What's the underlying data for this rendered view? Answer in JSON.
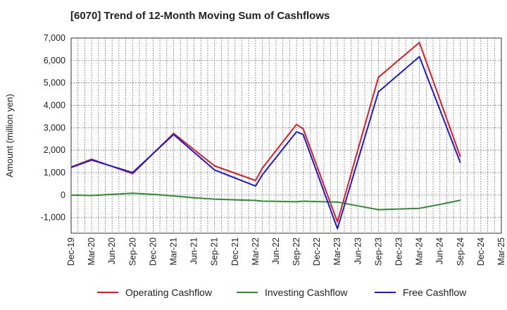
{
  "chart_data": {
    "type": "line",
    "title": "[6070]  Trend of 12-Month Moving Sum of Cashflows",
    "xlabel": "",
    "ylabel": "Amount (million yen)",
    "ylim": [
      -1700,
      7000
    ],
    "y_ticks": [
      -1000,
      0,
      1000,
      2000,
      3000,
      4000,
      5000,
      6000,
      7000
    ],
    "y_tick_labels": [
      "-1,000",
      "0",
      "1,000",
      "2,000",
      "3,000",
      "4,000",
      "5,000",
      "6,000",
      "7,000"
    ],
    "x_ticks": [
      "Dec-19",
      "Mar-20",
      "Jun-20",
      "Sep-20",
      "Dec-20",
      "Mar-21",
      "Jun-21",
      "Sep-21",
      "Dec-21",
      "Mar-22",
      "Jun-22",
      "Sep-22",
      "Dec-22",
      "Mar-23",
      "Jun-23",
      "Sep-23",
      "Dec-23",
      "Mar-24",
      "Jun-24",
      "Sep-24",
      "Dec-24",
      "Mar-25"
    ],
    "grid": true,
    "legend_position": "bottom",
    "series": [
      {
        "name": "Operating Cashflow",
        "color": "#e41a1c",
        "points": [
          [
            0,
            1250
          ],
          [
            1,
            1600
          ],
          [
            3,
            950
          ],
          [
            5,
            2750
          ],
          [
            7,
            1300
          ],
          [
            9,
            650
          ],
          [
            9.33,
            1200
          ],
          [
            11,
            3150
          ],
          [
            11.33,
            2950
          ],
          [
            13,
            -1200
          ],
          [
            15,
            5250
          ],
          [
            17,
            6800
          ],
          [
            19,
            1700
          ]
        ]
      },
      {
        "name": "Investing Cashflow",
        "color": "#2e8b2e",
        "points": [
          [
            0,
            0
          ],
          [
            1,
            -20
          ],
          [
            2,
            30
          ],
          [
            3,
            80
          ],
          [
            4,
            30
          ],
          [
            5,
            -40
          ],
          [
            6,
            -120
          ],
          [
            7,
            -180
          ],
          [
            8,
            -210
          ],
          [
            9,
            -240
          ],
          [
            9.33,
            -270
          ],
          [
            10,
            -280
          ],
          [
            11,
            -300
          ],
          [
            11.33,
            -270
          ],
          [
            12,
            -290
          ],
          [
            13,
            -310
          ],
          [
            14,
            -480
          ],
          [
            15,
            -650
          ],
          [
            16,
            -620
          ],
          [
            17,
            -590
          ],
          [
            18,
            -420
          ],
          [
            19,
            -230
          ]
        ]
      },
      {
        "name": "Free Cashflow",
        "color": "#1a1adb",
        "points": [
          [
            0,
            1230
          ],
          [
            1,
            1560
          ],
          [
            3,
            1000
          ],
          [
            5,
            2700
          ],
          [
            7,
            1120
          ],
          [
            9,
            400
          ],
          [
            9.33,
            900
          ],
          [
            11,
            2820
          ],
          [
            11.33,
            2700
          ],
          [
            13,
            -1500
          ],
          [
            15,
            4600
          ],
          [
            17,
            6170
          ],
          [
            19,
            1440
          ]
        ]
      }
    ]
  }
}
